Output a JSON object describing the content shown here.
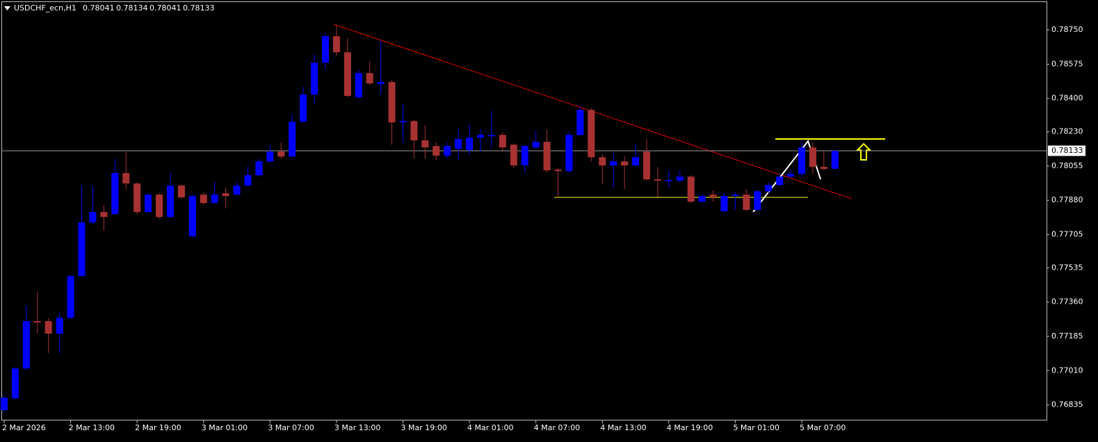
{
  "chart_data": {
    "type": "candlestick",
    "title": "USDCHF_ecn,H1",
    "header_prices": [
      "0.78041",
      "0.78134",
      "0.78041",
      "0.78133"
    ],
    "categories": [
      "2 Mar 2026",
      null,
      null,
      null,
      null,
      null,
      "2 Mar 13:00",
      null,
      null,
      null,
      null,
      null,
      "2 Mar 19:00",
      null,
      null,
      null,
      null,
      null,
      "3 Mar 01:00",
      null,
      null,
      null,
      null,
      null,
      "3 Mar 07:00",
      null,
      null,
      null,
      null,
      null,
      "3 Mar 13:00",
      null,
      null,
      null,
      null,
      null,
      "3 Mar 19:00",
      null,
      null,
      null,
      null,
      null,
      "4 Mar 01:00",
      null,
      null,
      null,
      null,
      null,
      "4 Mar 07:00",
      null,
      null,
      null,
      null,
      null,
      "4 Mar 13:00",
      null,
      null,
      null,
      null,
      null,
      "4 Mar 19:00",
      null,
      null,
      null,
      null,
      null,
      "5 Mar 01:00",
      null,
      null,
      null,
      null,
      null,
      "5 Mar 07:00",
      null,
      null,
      null
    ],
    "open": [
      0.76808,
      0.76869,
      0.77021,
      0.77263,
      0.77263,
      0.77199,
      0.7728,
      0.77493,
      0.77767,
      0.7782,
      0.77809,
      0.78019,
      0.77966,
      0.7782,
      0.77909,
      0.77795,
      0.77955,
      0.77696,
      0.77909,
      0.77866,
      0.77916,
      0.77909,
      0.77955,
      0.78008,
      0.78079,
      0.78129,
      0.78104,
      0.78281,
      0.7842,
      0.78583,
      0.78718,
      0.78636,
      0.78406,
      0.7853,
      0.78473,
      0.78484,
      0.78278,
      0.78285,
      0.78186,
      0.78157,
      0.78108,
      0.78143,
      0.78136,
      0.782,
      0.78207,
      0.78214,
      0.78164,
      0.78058,
      0.7815,
      0.78179,
      0.78037,
      0.78029,
      0.78214,
      0.78342,
      0.781,
      0.78058,
      0.78079,
      0.78058,
      0.78129,
      0.77987,
      0.77977,
      0.7798,
      0.78001,
      0.77873,
      0.77909,
      0.77824,
      0.77902,
      0.77909,
      0.77831,
      0.77926,
      0.77958,
      0.78001,
      0.78015,
      0.7815,
      0.78051,
      0.78041
    ],
    "high": [
      0.76879,
      0.77028,
      0.77341,
      0.77412,
      0.77277,
      0.77305,
      0.775,
      0.77951,
      0.77951,
      0.77855,
      0.78093,
      0.78129,
      0.77973,
      0.77916,
      0.77916,
      0.78022,
      0.77962,
      0.77909,
      0.77919,
      0.77973,
      0.77944,
      0.77973,
      0.78051,
      0.78093,
      0.78157,
      0.78175,
      0.78317,
      0.78459,
      0.78626,
      0.78736,
      0.78778,
      0.78707,
      0.78548,
      0.7859,
      0.7869,
      0.78494,
      0.7837,
      0.78292,
      0.78264,
      0.78175,
      0.78175,
      0.78246,
      0.78271,
      0.78246,
      0.78335,
      0.78228,
      0.78171,
      0.78164,
      0.78235,
      0.78242,
      0.78044,
      0.78228,
      0.78352,
      0.78352,
      0.78115,
      0.78122,
      0.78104,
      0.78168,
      0.78193,
      0.78051,
      0.78033,
      0.78033,
      0.78008,
      0.77909,
      0.7793,
      0.77916,
      0.77923,
      0.77937,
      0.77937,
      0.77973,
      0.78015,
      0.78033,
      0.78186,
      0.78175,
      0.78129,
      0.78134
    ],
    "low": [
      0.76801,
      0.76861,
      0.77014,
      0.77199,
      0.77099,
      0.77099,
      0.77277,
      0.7749,
      0.7776,
      0.77724,
      0.77809,
      0.77937,
      0.77809,
      0.77816,
      0.77784,
      0.77788,
      0.77887,
      0.77689,
      0.77859,
      0.77866,
      0.77838,
      0.77905,
      0.77951,
      0.78001,
      0.78072,
      0.78093,
      0.781,
      0.78278,
      0.7837,
      0.78548,
      0.78619,
      0.78406,
      0.78399,
      0.7847,
      0.78423,
      0.78164,
      0.78175,
      0.78093,
      0.78093,
      0.78086,
      0.78093,
      0.78086,
      0.78115,
      0.78129,
      0.7815,
      0.78129,
      0.78044,
      0.78022,
      0.78143,
      0.78022,
      0.77894,
      0.78022,
      0.78207,
      0.78079,
      0.77962,
      0.77944,
      0.77937,
      0.78051,
      0.7798,
      0.77898,
      0.77944,
      0.77973,
      0.77866,
      0.77866,
      0.77873,
      0.7782,
      0.77831,
      0.77823,
      0.77823,
      0.77916,
      0.77951,
      0.77994,
      0.77994,
      0.78015,
      0.78033,
      0.78041
    ],
    "close": [
      0.76872,
      0.77021,
      0.77263,
      0.77256,
      0.77199,
      0.7728,
      0.77493,
      0.77767,
      0.7782,
      0.77795,
      0.78019,
      0.77966,
      0.7782,
      0.77909,
      0.77795,
      0.77955,
      0.77895,
      0.77902,
      0.77866,
      0.77909,
      0.77902,
      0.77955,
      0.78008,
      0.78079,
      0.78129,
      0.78104,
      0.78281,
      0.7842,
      0.78583,
      0.78718,
      0.78636,
      0.78413,
      0.7853,
      0.78477,
      0.78484,
      0.78278,
      0.78285,
      0.78186,
      0.7815,
      0.78108,
      0.78157,
      0.78193,
      0.782,
      0.78214,
      0.78214,
      0.7815,
      0.78058,
      0.78157,
      0.78179,
      0.78033,
      0.78029,
      0.78214,
      0.78342,
      0.781,
      0.78058,
      0.78079,
      0.78058,
      0.781,
      0.77987,
      0.7798,
      0.77983,
      0.78001,
      0.77873,
      0.77902,
      0.77895,
      0.77902,
      0.77909,
      0.77831,
      0.77926,
      0.77958,
      0.78001,
      0.78015,
      0.7815,
      0.78051,
      0.7804,
      0.78133
    ],
    "up_color": "#0000ff",
    "down_color": "#a83232",
    "last_price": 0.78133,
    "ylim": [
      0.76759,
      0.78896
    ],
    "yticks": [
      {
        "value": 0.7875,
        "label": "0.78750"
      },
      0.78575,
      {
        "value": 0.784,
        "label": "0.78400"
      },
      {
        "value": 0.7823,
        "label": "0.78230"
      },
      0.78055,
      {
        "value": 0.7788,
        "label": "0.77880"
      },
      0.77705,
      0.77535,
      {
        "value": 0.7736,
        "label": "0.77360"
      },
      0.77185,
      {
        "value": 0.7701,
        "label": "0.77010"
      },
      0.76835
    ]
  }
}
